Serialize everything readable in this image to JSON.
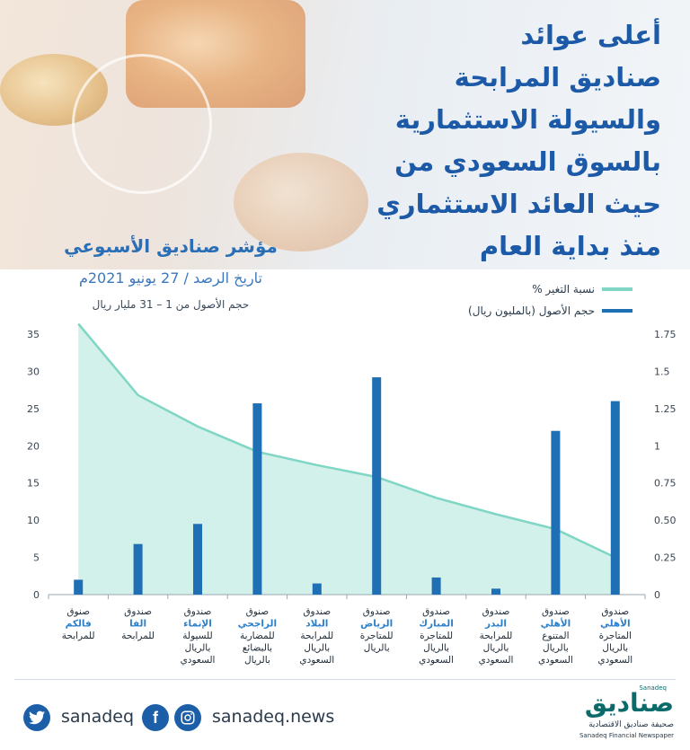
{
  "header": {
    "title_lines": [
      "أعلى عوائد",
      "صناديق المرابحة",
      "والسيولة الاستثمارية",
      "بالسوق السعودي من",
      "حيث العائد الاستثماري",
      "منذ بداية العام"
    ],
    "subtitle": "مؤشر صناديق الأسبوعي",
    "date_line": "تاريخ الرصد / 27 يونيو 2021م",
    "assets_line": "حجم الأصول من 1 – 31 مليار ريال"
  },
  "legend": [
    {
      "label": "نسبة التغير %",
      "color": "#7fd6c4"
    },
    {
      "label": "حجم الأصول (بالمليون ريال)",
      "color": "#1f6fb5"
    }
  ],
  "chart_data": {
    "type": "bar",
    "categories": [
      [
        "صندوق",
        "الأهلي",
        "المتاجرة",
        "بالريال",
        "السعودي"
      ],
      [
        "صندوق",
        "الأهلي",
        "المتنوع",
        "بالريال",
        "السعودي"
      ],
      [
        "صندوق",
        "البدر",
        "للمرابحة",
        "بالريال",
        "السعودي"
      ],
      [
        "صندوق",
        "المبارك",
        "للمتاجرة",
        "بالريال",
        "السعودي"
      ],
      [
        "صندوق",
        "الرياض",
        "للمتاجرة",
        "بالريال"
      ],
      [
        "صندوق",
        "البلاد",
        "للمرابحة",
        "بالريال",
        "السعودي"
      ],
      [
        "صنوق",
        "الراجحي",
        "للمضاربة",
        "بالبضائع",
        "بالريال"
      ],
      [
        "صندوق",
        "الإنماء",
        "للسيولة",
        "بالريال",
        "السعودي"
      ],
      [
        "صندوق",
        "الفا",
        "للمرابحة"
      ],
      [
        "صنوق",
        "فالكم",
        "للمرابحة"
      ]
    ],
    "highlight_line": 1,
    "series": [
      {
        "name": "حجم الأصول (بالمليون ريال)",
        "axis": "left",
        "style": "bar",
        "color": "#1f6fb5",
        "values": [
          26,
          22,
          0.8,
          2.3,
          29.2,
          1.5,
          25.7,
          9.5,
          6.8,
          2
        ]
      },
      {
        "name": "نسبة التغير %",
        "axis": "right",
        "style": "area",
        "color": "#7fd6c4",
        "values": [
          0.25,
          0.44,
          0.54,
          0.65,
          0.79,
          0.87,
          0.96,
          1.13,
          1.34,
          1.82
        ]
      }
    ],
    "left_axis": {
      "ylim": [
        0,
        35
      ],
      "ticks": [
        "0",
        "5",
        "10",
        "15",
        "20",
        "25",
        "30",
        "35"
      ]
    },
    "right_axis": {
      "ylim": [
        0,
        1.75
      ],
      "ticks": [
        "0",
        "0.25",
        "0.50",
        "0.75",
        "1",
        "1.25",
        "1.5",
        "1.75"
      ]
    }
  },
  "footer": {
    "twitter_handle": "sanadeq",
    "website": "sanadeq.news",
    "brand_name": "صناديق",
    "brand_small": "Sanadeq",
    "brand_tagline_ar": "صحيفة صناديق الاقتصادية",
    "brand_tagline_en": "Sanadeq Financial Newspaper",
    "icons": [
      "twitter-icon",
      "facebook-icon",
      "instagram-icon"
    ]
  }
}
